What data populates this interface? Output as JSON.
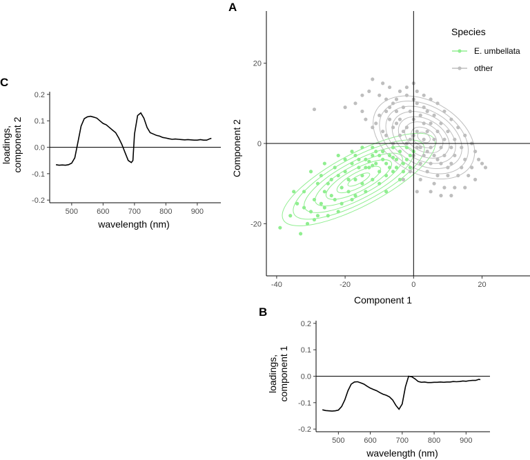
{
  "chart_data": [
    {
      "id": "A",
      "panel_label": "A",
      "type": "scatter",
      "xlabel": "Component 1",
      "ylabel": "Component 2",
      "xlim": [
        -43,
        34
      ],
      "ylim": [
        -33,
        33
      ],
      "xticks": [
        -40,
        -20,
        0,
        20
      ],
      "yticks": [
        -20,
        0,
        20
      ],
      "xtick_labels": [
        "-40",
        "-20",
        "0",
        "20"
      ],
      "ytick_labels": [
        "-20",
        "0",
        "20"
      ],
      "reference_lines": {
        "x": 0,
        "y": 0
      },
      "legend": {
        "title": "Species",
        "position": "top-right",
        "entries": [
          {
            "label": "E. umbellata",
            "color": "#90ee90"
          },
          {
            "label": "other",
            "color": "#bebebe"
          }
        ]
      },
      "series": [
        {
          "name": "E. umbellata",
          "color": "#90ee90",
          "points": [
            [
              -39,
              -21
            ],
            [
              -33,
              -22.5
            ],
            [
              -36,
              -18
            ],
            [
              -31,
              -20
            ],
            [
              -34,
              -15
            ],
            [
              -30,
              -17
            ],
            [
              -32,
              -12
            ],
            [
              -29,
              -14
            ],
            [
              -28,
              -10
            ],
            [
              -27,
              -15
            ],
            [
              -26,
              -12
            ],
            [
              -25,
              -18
            ],
            [
              -24,
              -9
            ],
            [
              -23,
              -14
            ],
            [
              -22,
              -8
            ],
            [
              -21,
              -11
            ],
            [
              -20,
              -7
            ],
            [
              -19,
              -12
            ],
            [
              -18,
              -5
            ],
            [
              -17,
              -9
            ],
            [
              -16,
              -4
            ],
            [
              -15,
              -8
            ],
            [
              -14,
              -4
            ],
            [
              -13,
              -6
            ],
            [
              -12,
              -3
            ],
            [
              -11,
              -5
            ],
            [
              -10,
              -7
            ],
            [
              -9,
              -2
            ],
            [
              -8,
              -5
            ],
            [
              -7,
              -3
            ],
            [
              -6,
              -1
            ],
            [
              -5,
              -4
            ],
            [
              -4,
              -2
            ],
            [
              -3,
              -5
            ],
            [
              -2,
              -1
            ],
            [
              -1,
              -3
            ],
            [
              -14,
              -12
            ],
            [
              -12,
              -9
            ],
            [
              -10,
              -10
            ],
            [
              -8,
              -8
            ],
            [
              -30,
              -7
            ],
            [
              -26,
              -5
            ],
            [
              -22,
              -3
            ],
            [
              -18,
              -2
            ],
            [
              -15,
              -1
            ],
            [
              -28,
              -18
            ],
            [
              -22,
              -17
            ],
            [
              -17,
              -13
            ],
            [
              -6,
              -7
            ],
            [
              -4,
              -9
            ],
            [
              -11,
              -2
            ],
            [
              -9,
              -4
            ],
            [
              -13,
              -4.5
            ],
            [
              -12,
              -5.5
            ],
            [
              -7,
              -6
            ],
            [
              -3,
              -7
            ],
            [
              -20,
              -4
            ],
            [
              -24,
              -13
            ],
            [
              -27,
              -8
            ],
            [
              -16,
              -6
            ],
            [
              -35,
              -12
            ],
            [
              -32,
              -16
            ],
            [
              -29,
              -19
            ],
            [
              -25,
              -10
            ],
            [
              -19,
              -9
            ],
            [
              -21,
              -15
            ],
            [
              -23,
              -6
            ],
            [
              -17,
              -3
            ],
            [
              -8,
              -12
            ],
            [
              -6,
              -3.5
            ],
            [
              -5,
              -6
            ],
            [
              -2,
              -4
            ],
            [
              -1,
              -6
            ],
            [
              0,
              -2
            ],
            [
              -10,
              -3
            ],
            [
              -12,
              -1
            ],
            [
              -14,
              -6
            ],
            [
              -15,
              -10
            ],
            [
              -18,
              -14
            ],
            [
              -26,
              -16
            ]
          ]
        },
        {
          "name": "other",
          "color": "#bebebe",
          "points": [
            [
              -4,
              13
            ],
            [
              -2,
              12
            ],
            [
              0,
              11
            ],
            [
              -6,
              10
            ],
            [
              -3,
              9
            ],
            [
              1,
              10
            ],
            [
              3,
              9
            ],
            [
              -5,
              8
            ],
            [
              -1,
              8
            ],
            [
              2,
              7
            ],
            [
              4,
              8
            ],
            [
              6,
              7
            ],
            [
              -7,
              6
            ],
            [
              -4,
              6
            ],
            [
              0,
              6
            ],
            [
              3,
              5
            ],
            [
              5,
              5
            ],
            [
              8,
              5
            ],
            [
              -6,
              4
            ],
            [
              -2,
              4
            ],
            [
              1,
              3
            ],
            [
              4,
              3
            ],
            [
              7,
              3
            ],
            [
              10,
              3
            ],
            [
              -8,
              2
            ],
            [
              -4,
              2
            ],
            [
              0,
              2
            ],
            [
              3,
              1
            ],
            [
              6,
              1
            ],
            [
              9,
              1
            ],
            [
              12,
              1
            ],
            [
              -6,
              0
            ],
            [
              -2,
              0
            ],
            [
              2,
              -1
            ],
            [
              5,
              -1
            ],
            [
              8,
              -1
            ],
            [
              11,
              -1
            ],
            [
              14,
              -1
            ],
            [
              -4,
              -2
            ],
            [
              0,
              -3
            ],
            [
              3,
              -3
            ],
            [
              6,
              -3
            ],
            [
              9,
              -3
            ],
            [
              12,
              -3
            ],
            [
              15,
              -4
            ],
            [
              2,
              -5
            ],
            [
              5,
              -5
            ],
            [
              8,
              -5
            ],
            [
              11,
              -5
            ],
            [
              14,
              -6
            ],
            [
              17,
              -6
            ],
            [
              4,
              -7
            ],
            [
              7,
              -8
            ],
            [
              10,
              -8
            ],
            [
              13,
              -8
            ],
            [
              16,
              -8
            ],
            [
              6,
              -10
            ],
            [
              9,
              -11
            ],
            [
              12,
              -11
            ],
            [
              8,
              -13
            ],
            [
              -12,
              16
            ],
            [
              -9,
              15
            ],
            [
              -7,
              14
            ],
            [
              -20,
              9
            ],
            [
              -15,
              8
            ],
            [
              -29,
              8.5
            ],
            [
              -10,
              12
            ],
            [
              -8,
              11
            ],
            [
              -11,
              5
            ],
            [
              -9,
              3
            ],
            [
              20,
              -5
            ],
            [
              21,
              -6
            ],
            [
              18,
              -9
            ],
            [
              15,
              -11
            ],
            [
              11,
              -13
            ],
            [
              5,
              -12
            ],
            [
              2,
              -9
            ],
            [
              -1,
              -7
            ],
            [
              1,
              -12
            ],
            [
              -3,
              -9
            ],
            [
              -5,
              11
            ],
            [
              -2,
              14
            ],
            [
              1,
              13
            ],
            [
              3,
              12
            ],
            [
              5,
              11
            ],
            [
              7,
              10
            ],
            [
              9,
              8
            ],
            [
              11,
              6
            ],
            [
              13,
              4
            ],
            [
              15,
              2
            ],
            [
              17,
              0
            ],
            [
              18,
              -2
            ],
            [
              19,
              -4
            ],
            [
              -8,
              8
            ],
            [
              -10,
              7
            ],
            [
              -12,
              4
            ],
            [
              -6,
              -1
            ],
            [
              -9,
              -2
            ],
            [
              10,
              -6
            ],
            [
              7,
              -4
            ],
            [
              4,
              -2
            ],
            [
              1,
              -1
            ],
            [
              -1,
              1
            ],
            [
              -3,
              3
            ],
            [
              -5,
              5
            ],
            [
              -7,
              9
            ],
            [
              0,
              15
            ],
            [
              -13,
              13
            ],
            [
              -15,
              12
            ],
            [
              -17,
              10
            ],
            [
              -14,
              6
            ]
          ]
        }
      ]
    },
    {
      "id": "B",
      "panel_label": "B",
      "type": "line",
      "xlabel": "wavelength (nm)",
      "ylabel_lines": [
        "loadings,",
        "component 1"
      ],
      "xlim": [
        430,
        975
      ],
      "ylim": [
        -0.21,
        0.21
      ],
      "xticks": [
        500,
        600,
        700,
        800,
        900
      ],
      "xtick_labels": [
        "500",
        "600",
        "700",
        "800",
        "900"
      ],
      "yticks": [
        -0.2,
        -0.1,
        0.0,
        0.1,
        0.2
      ],
      "ytick_labels": [
        "-0.2",
        "-0.1",
        "0.0",
        "0.1",
        "0.2"
      ],
      "reference_lines": {
        "y": 0
      },
      "x": [
        450,
        460,
        470,
        480,
        490,
        500,
        510,
        520,
        530,
        540,
        550,
        560,
        570,
        580,
        590,
        600,
        610,
        620,
        630,
        640,
        650,
        660,
        670,
        680,
        690,
        700,
        710,
        720,
        730,
        740,
        750,
        760,
        770,
        780,
        790,
        800,
        810,
        820,
        830,
        840,
        850,
        860,
        870,
        880,
        890,
        900,
        910,
        920,
        930,
        940,
        945
      ],
      "values": [
        -0.127,
        -0.13,
        -0.131,
        -0.132,
        -0.131,
        -0.128,
        -0.115,
        -0.09,
        -0.055,
        -0.03,
        -0.022,
        -0.021,
        -0.025,
        -0.03,
        -0.038,
        -0.045,
        -0.05,
        -0.055,
        -0.062,
        -0.068,
        -0.072,
        -0.078,
        -0.09,
        -0.11,
        -0.125,
        -0.105,
        -0.04,
        0.0,
        -0.002,
        -0.01,
        -0.02,
        -0.023,
        -0.022,
        -0.024,
        -0.024,
        -0.023,
        -0.023,
        -0.022,
        -0.023,
        -0.022,
        -0.022,
        -0.02,
        -0.021,
        -0.02,
        -0.018,
        -0.019,
        -0.017,
        -0.016,
        -0.016,
        -0.012,
        -0.013
      ]
    },
    {
      "id": "C",
      "panel_label": "C",
      "type": "line",
      "xlabel": "wavelength (nm)",
      "ylabel_lines": [
        "loadings,",
        "component 2"
      ],
      "xlim": [
        430,
        975
      ],
      "ylim": [
        -0.21,
        0.21
      ],
      "xticks": [
        500,
        600,
        700,
        800,
        900
      ],
      "xtick_labels": [
        "500",
        "600",
        "700",
        "800",
        "900"
      ],
      "yticks": [
        -0.2,
        -0.1,
        0.0,
        0.1,
        0.2
      ],
      "ytick_labels": [
        "-0.2",
        "-0.1",
        "0.0",
        "0.1",
        "0.2"
      ],
      "reference_lines": {
        "y": 0
      },
      "x": [
        450,
        460,
        470,
        480,
        490,
        500,
        510,
        520,
        530,
        540,
        550,
        560,
        570,
        580,
        590,
        600,
        610,
        620,
        630,
        640,
        650,
        660,
        670,
        680,
        690,
        695,
        700,
        710,
        720,
        730,
        740,
        750,
        760,
        770,
        780,
        790,
        800,
        810,
        820,
        830,
        840,
        850,
        860,
        870,
        880,
        890,
        900,
        910,
        920,
        930,
        940,
        945
      ],
      "values": [
        -0.066,
        -0.068,
        -0.067,
        -0.068,
        -0.066,
        -0.06,
        -0.04,
        0.02,
        0.08,
        0.108,
        0.115,
        0.117,
        0.114,
        0.11,
        0.1,
        0.09,
        0.085,
        0.075,
        0.065,
        0.055,
        0.035,
        0.01,
        -0.02,
        -0.05,
        -0.058,
        -0.05,
        0.05,
        0.12,
        0.13,
        0.11,
        0.075,
        0.055,
        0.05,
        0.045,
        0.042,
        0.037,
        0.035,
        0.032,
        0.03,
        0.031,
        0.03,
        0.029,
        0.028,
        0.029,
        0.028,
        0.027,
        0.027,
        0.029,
        0.027,
        0.027,
        0.032,
        0.034
      ]
    }
  ]
}
